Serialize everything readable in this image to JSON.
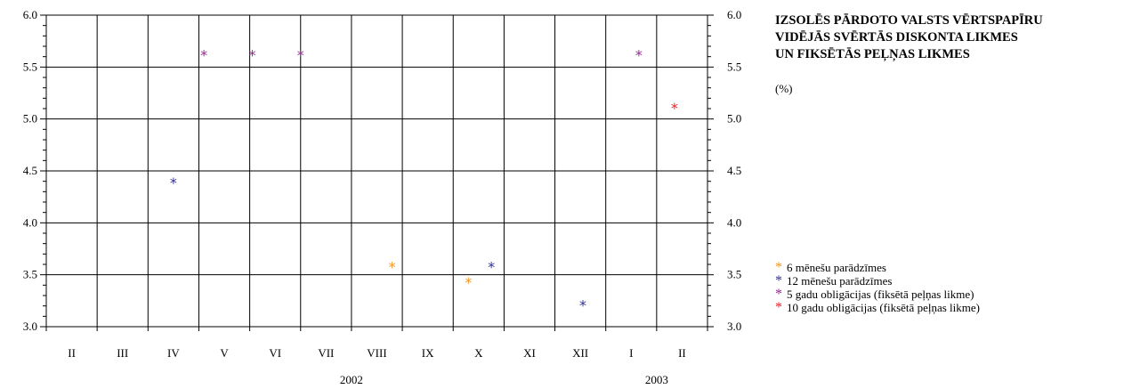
{
  "chart_data": {
    "type": "scatter",
    "title_lines": [
      "IZSOLĒS PĀRDOTO VALSTS VĒRTSPAPĪRU",
      "VIDĒJĀS SVĒRTĀS DISKONTA LIKMES",
      "UN FIKSĒTĀS PEĻŅAS LIKMES"
    ],
    "unit": "(%)",
    "marker": "*",
    "categories": [
      "II",
      "III",
      "IV",
      "V",
      "VI",
      "VII",
      "VIII",
      "IX",
      "X",
      "XI",
      "XII",
      "I",
      "II"
    ],
    "years": [
      {
        "label": "2002",
        "center_category": 5.5
      },
      {
        "label": "2003",
        "center_category": 11.5
      }
    ],
    "ylim": [
      3.0,
      6.0
    ],
    "yticks": [
      "3.0",
      "3.5",
      "4.0",
      "4.5",
      "5.0",
      "5.5",
      "6.0"
    ],
    "grid": true,
    "legend_position": "right",
    "series": [
      {
        "name": "6 mēnešu parādzīmes",
        "color": "#f7941d",
        "points": [
          {
            "x": 6.3,
            "y": 3.58
          },
          {
            "x": 7.8,
            "y": 3.43
          }
        ]
      },
      {
        "name": "12 mēnešu parādzīmes",
        "color": "#2e3192",
        "points": [
          {
            "x": 2.0,
            "y": 4.39
          },
          {
            "x": 8.25,
            "y": 3.58
          },
          {
            "x": 10.05,
            "y": 3.21
          }
        ]
      },
      {
        "name": "5 gadu obligācijas (fiksētā peļņas likme)",
        "color": "#92278f",
        "points": [
          {
            "x": 2.6,
            "y": 5.62
          },
          {
            "x": 3.55,
            "y": 5.62
          },
          {
            "x": 4.5,
            "y": 5.62
          },
          {
            "x": 11.15,
            "y": 5.62
          }
        ]
      },
      {
        "name": "10 gadu obligācijas (fiksētā peļņas likme)",
        "color": "#ed1c24",
        "points": [
          {
            "x": 11.85,
            "y": 5.11
          }
        ]
      }
    ]
  }
}
